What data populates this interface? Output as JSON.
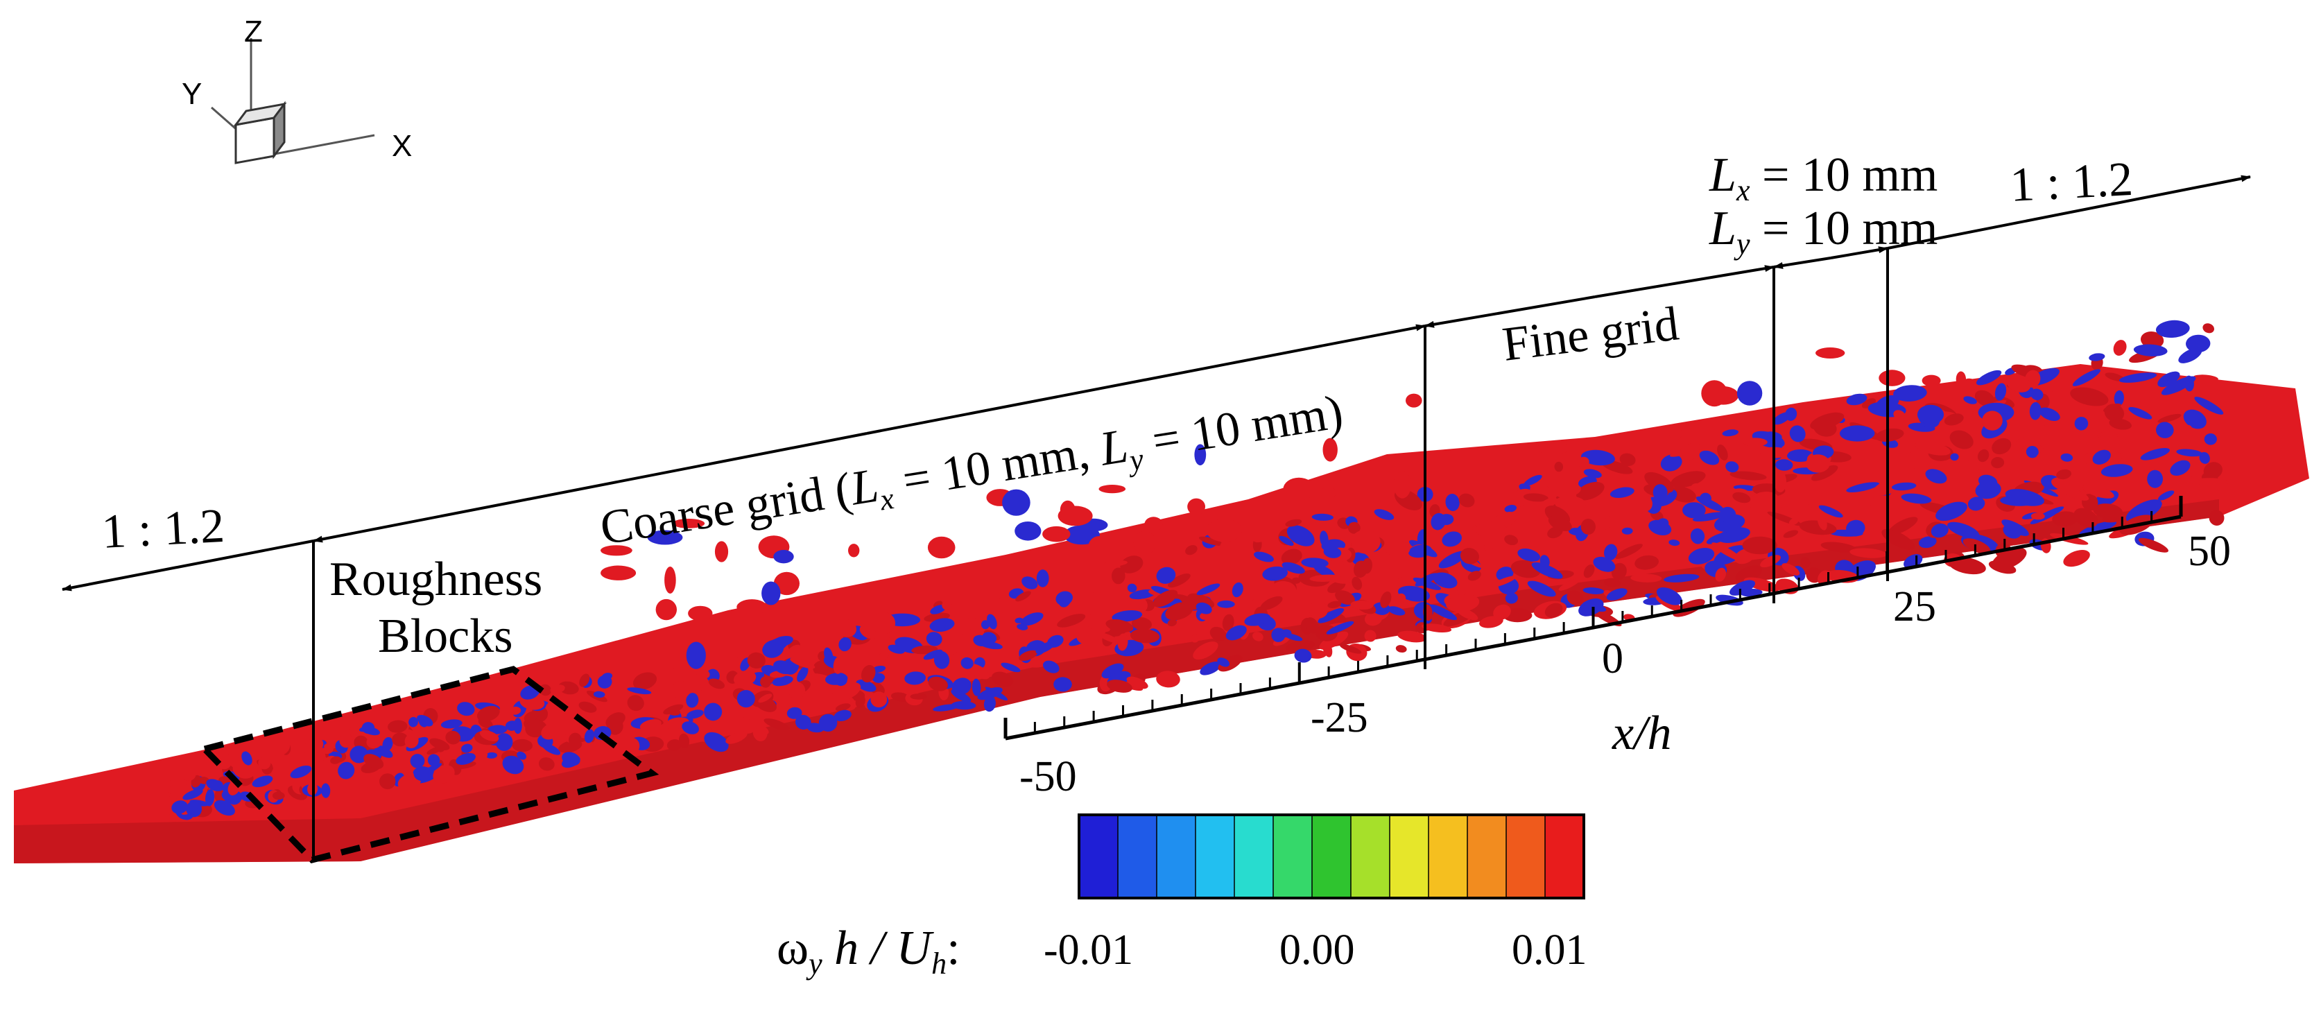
{
  "axes_triad": {
    "z": "Z",
    "y": "Y",
    "x": "X"
  },
  "annotations": {
    "left_ratio": "1 : 1.2",
    "right_ratio": "1 : 1.2",
    "coarse_grid_pre": "Coarse grid (",
    "coarse_grid_lx": "L",
    "coarse_grid_lx_sub": "x",
    "coarse_grid_mid": " = 10 mm, ",
    "coarse_grid_ly": "L",
    "coarse_grid_ly_sub": "y",
    "coarse_grid_post": " = 10 mm)",
    "fine_grid": "Fine grid",
    "lx_var": "L",
    "lx_sub": "x",
    "lx_val": " = 10 mm",
    "ly_var": "L",
    "ly_sub": "y",
    "ly_val": " = 10 mm",
    "roughness_line1": "Roughness",
    "roughness_line2": "Blocks"
  },
  "x_axis": {
    "title_var": "x",
    "title_rest": "/h",
    "ticks": [
      "-50",
      "-25",
      "0",
      "25",
      "50"
    ]
  },
  "colorbar": {
    "label_omega": "ω",
    "label_sub": "y",
    "label_mid": " h / U",
    "label_sub2": "h",
    "label_end": ":",
    "tick_labels": [
      "-0.01",
      "0.00",
      "0.01"
    ],
    "min": -0.01,
    "max": 0.01,
    "colors": [
      "#1f1fd6",
      "#1f5be8",
      "#1f8ff0",
      "#22bff0",
      "#28dccf",
      "#35d86a",
      "#2fc42f",
      "#a6e02a",
      "#e6e62a",
      "#f5bf1f",
      "#f28c1f",
      "#ef5a1c",
      "#e81c1c"
    ]
  },
  "visual_colors": {
    "positive_vorticity": "#e01a22",
    "negative_vorticity": "#2a2ad0"
  }
}
